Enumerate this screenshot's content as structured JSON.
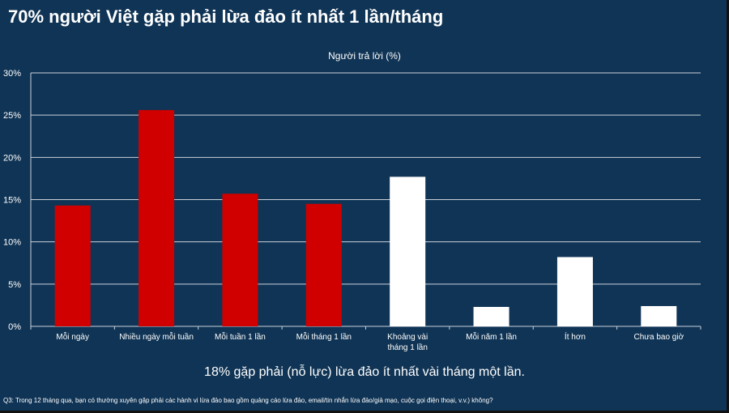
{
  "title": "70% người Việt gặp phải lừa đảo ít nhất 1 lần/tháng",
  "note": "18% gặp phải (nỗ lực) lừa đảo ít nhất vài tháng một lần.",
  "footnote": "Q3: Trong 12 tháng qua, bạn có thường xuyên gặp phải các hành vi lừa đảo bao gồm quảng cáo lừa đảo, email/tin nhắn lừa đảo/giả mạo, cuộc gọi điện thoại, v.v.) không?",
  "colors": {
    "background": "#103455",
    "red": "#d00000",
    "white": "#ffffff",
    "grid": "#c8d0da"
  },
  "chart_data": {
    "type": "bar",
    "title": "Người trả lời (%)",
    "categories": [
      "Mỗi ngày",
      "Nhiều ngày mỗi tuần",
      "Mỗi tuần 1 lần",
      "Mỗi tháng 1 lần",
      "Khoảng vài tháng 1 lần",
      "Mỗi năm 1 lần",
      "Ít hơn",
      "Chưa bao giờ"
    ],
    "category_lines": [
      [
        "Mỗi ngày"
      ],
      [
        "Nhiều ngày mỗi tuần"
      ],
      [
        "Mỗi tuần 1 lần"
      ],
      [
        "Mỗi tháng 1 lần"
      ],
      [
        "Khoảng vài",
        "tháng 1 lần"
      ],
      [
        "Mỗi năm 1 lần"
      ],
      [
        "Ít hơn"
      ],
      [
        "Chưa bao giờ"
      ]
    ],
    "values": [
      14.3,
      25.6,
      15.7,
      14.5,
      17.7,
      2.3,
      8.2,
      2.4
    ],
    "bar_colors": [
      "#d00000",
      "#d00000",
      "#d00000",
      "#d00000",
      "#ffffff",
      "#ffffff",
      "#ffffff",
      "#ffffff"
    ],
    "y_ticks": [
      "0%",
      "5%",
      "10%",
      "15%",
      "20%",
      "25%",
      "30%"
    ],
    "ylim": [
      0,
      30
    ],
    "grid": true,
    "xlabel": "",
    "ylabel": ""
  }
}
